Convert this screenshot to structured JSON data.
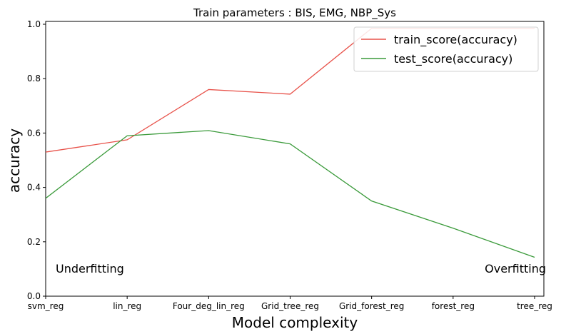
{
  "chart_data": {
    "type": "line",
    "title": "Train parameters : BIS, EMG, NBP_Sys",
    "xlabel": "Model complexity",
    "ylabel": "accuracy",
    "categories": [
      "svm_reg",
      "lin_reg",
      "Four_deg_lin_reg",
      "Grid_tree_reg",
      "Grid_forest_reg",
      "forest_reg",
      "tree_reg"
    ],
    "ylim": [
      0.0,
      1.0
    ],
    "yticks": [
      "0.0",
      "0.2",
      "0.4",
      "0.6",
      "0.8",
      "1.0"
    ],
    "grid": false,
    "legend_position": "top-right",
    "series": [
      {
        "name": "train_score(accuracy)",
        "color": "#e8524a",
        "values": [
          0.53,
          0.575,
          0.76,
          0.743,
          0.985,
          0.985,
          0.985
        ]
      },
      {
        "name": "test_score(accuracy)",
        "color": "#3a9a3a",
        "values": [
          0.36,
          0.59,
          0.609,
          0.56,
          0.35,
          0.25,
          0.143
        ]
      }
    ],
    "annotations": [
      {
        "text": "Underfitting",
        "category": "svm_reg",
        "y": 0.1,
        "anchor": "start"
      },
      {
        "text": "Overfitting",
        "category": "tree_reg",
        "y": 0.1,
        "anchor": "end"
      }
    ]
  }
}
